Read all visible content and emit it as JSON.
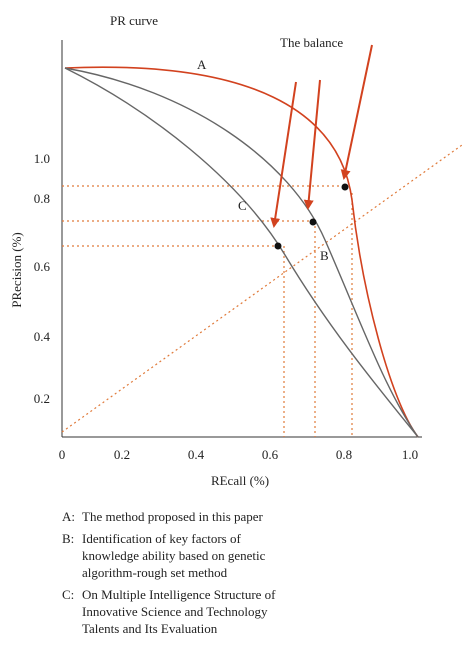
{
  "title": "PR curve",
  "annotation": "The balance",
  "curve_labels": [
    "A",
    "B",
    "C"
  ],
  "x_axis": {
    "label": "REcall (%)",
    "ticks": [
      "0",
      "0.2",
      "0.4",
      "0.6",
      "0.8",
      "1.0"
    ]
  },
  "y_axis": {
    "label": "PRecision (%)",
    "ticks": [
      "0.2",
      "0.4",
      "0.6",
      "0.8",
      "1.0"
    ]
  },
  "legend": [
    {
      "key": "A:",
      "lines": [
        "The method proposed in this paper"
      ]
    },
    {
      "key": "B:",
      "lines": [
        "Identification of key factors of",
        "knowledge ability based on genetic",
        "algorithm-rough set method"
      ]
    },
    {
      "key": "C:",
      "lines": [
        "On Multiple Intelligence Structure of",
        "Innovative Science and Technology",
        "Talents and Its Evaluation"
      ]
    }
  ]
}
